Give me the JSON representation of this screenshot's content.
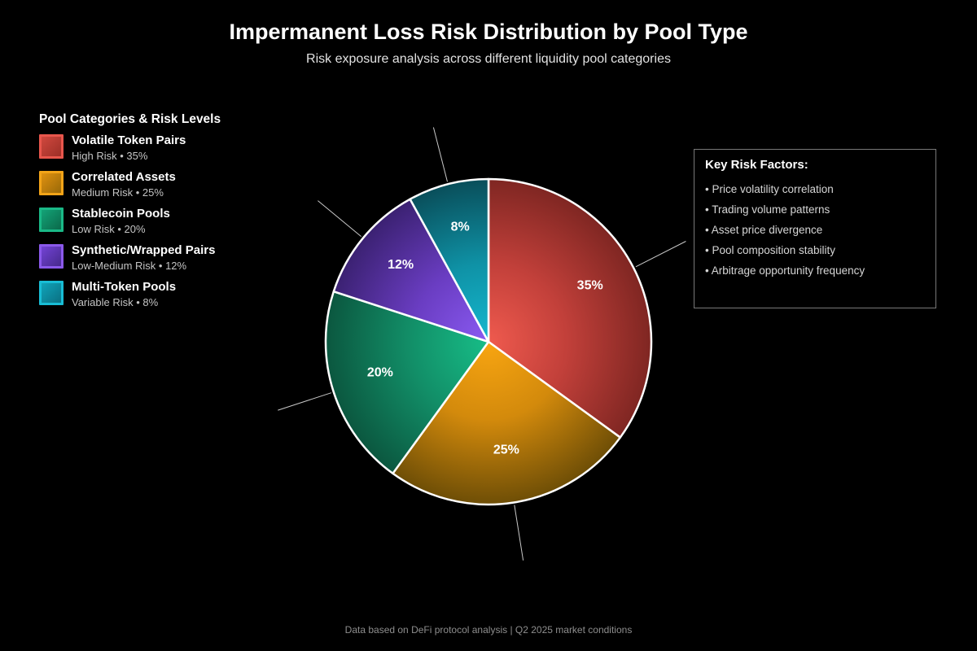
{
  "header": {
    "title": "Impermanent Loss Risk Distribution by Pool Type",
    "subtitle": "Risk exposure analysis across different liquidity pool categories"
  },
  "legend": {
    "title": "Pool Categories & Risk Levels",
    "items": [
      {
        "name": "Volatile Token Pairs",
        "detail": "High Risk • 35%",
        "swatch": {
          "border": "#e8564c",
          "light": "#d0483e",
          "dark": "#9c2f27"
        }
      },
      {
        "name": "Correlated Assets",
        "detail": "Medium Risk • 25%",
        "swatch": {
          "border": "#f3a418",
          "light": "#e09110",
          "dark": "#996908"
        }
      },
      {
        "name": "Stablecoin Pools",
        "detail": "Low Risk • 20%",
        "swatch": {
          "border": "#1ab987",
          "light": "#13a377",
          "dark": "#0b694a"
        }
      },
      {
        "name": "Synthetic/Wrapped Pairs",
        "detail": "Low-Medium Risk • 12%",
        "swatch": {
          "border": "#8b59eb",
          "light": "#7343d5",
          "dark": "#46298c"
        }
      },
      {
        "name": "Multi-Token Pools",
        "detail": "Variable Risk • 8%",
        "swatch": {
          "border": "#18bdd5",
          "light": "#10a3b9",
          "dark": "#0a7082"
        }
      }
    ]
  },
  "risk_box": {
    "title": "Key Risk Factors:",
    "bullet": "•",
    "items": [
      "Price volatility correlation",
      "Trading volume patterns",
      "Asset price divergence",
      "Pool composition stability",
      "Arbitrage opportunity frequency"
    ]
  },
  "chart_data": {
    "type": "pie",
    "title": "Impermanent Loss Risk Distribution by Pool Type",
    "subtitle": "Risk exposure analysis across different liquidity pool categories",
    "categories": [
      "Volatile Token Pairs",
      "Correlated Assets",
      "Stablecoin Pools",
      "Synthetic/Wrapped Pairs",
      "Multi-Token Pools"
    ],
    "values": [
      35,
      25,
      20,
      12,
      8
    ],
    "unit": "%",
    "labels": [
      "35%",
      "25%",
      "20%",
      "12%",
      "8%"
    ],
    "risk_levels": [
      "High Risk",
      "Medium Risk",
      "Low Risk",
      "Low-Medium Risk",
      "Variable Risk"
    ],
    "start_angle_deg": 90,
    "direction": "clockwise",
    "label_radius_fraction": 0.7,
    "legend_position": "left",
    "slice_colors": [
      {
        "center": "#ef5a4e",
        "mid": "#c2403a",
        "edge": "#7f2622"
      },
      {
        "center": "#f8a511",
        "mid": "#d38a0c",
        "edge": "#6e4e06"
      },
      {
        "center": "#17bd87",
        "mid": "#128f68",
        "edge": "#0b573f"
      },
      {
        "center": "#8a5af2",
        "mid": "#6a3dc2",
        "edge": "#3b2172"
      },
      {
        "center": "#15b8cf",
        "mid": "#0f92a6",
        "edge": "#094e5a"
      }
    ],
    "stroke_color": "#ffffff",
    "leader_line_color": "#c8c8c8"
  },
  "footer": {
    "note": "Data based on DeFi protocol analysis | Q2 2025 market conditions"
  }
}
